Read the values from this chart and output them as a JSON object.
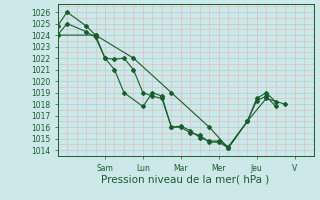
{
  "background_color": "#cde8e8",
  "grid_major_color": "#aacfcf",
  "grid_minor_color": "#e0b8b8",
  "line_color": "#1a5c2a",
  "ylim": [
    1013.5,
    1026.7
  ],
  "yticks": [
    1014,
    1015,
    1016,
    1017,
    1018,
    1019,
    1020,
    1021,
    1022,
    1023,
    1024,
    1025,
    1026
  ],
  "xlabel": "Pression niveau de la mer( hPa )",
  "xlabel_fontsize": 7.5,
  "day_labels": [
    "Sam",
    "Lun",
    "Mar",
    "Mer",
    "Jeu",
    "V"
  ],
  "day_positions": [
    2.5,
    4.5,
    6.5,
    8.5,
    10.5,
    12.5
  ],
  "xlim": [
    0,
    13.5
  ],
  "series": [
    {
      "x": [
        0.0,
        0.5,
        1.5,
        2.0,
        2.5,
        3.0,
        3.5,
        4.5,
        5.0,
        5.5,
        6.0,
        6.5,
        7.0,
        7.5,
        8.0,
        8.5,
        9.0,
        10.0,
        10.5,
        11.0,
        11.5
      ],
      "y": [
        1024.8,
        1026.0,
        1024.8,
        1024.0,
        1022.0,
        1021.0,
        1019.0,
        1017.8,
        1019.0,
        1018.7,
        1016.0,
        1016.0,
        1015.5,
        1015.3,
        1014.7,
        1014.7,
        1014.2,
        1016.5,
        1018.3,
        1018.7,
        1017.8
      ]
    },
    {
      "x": [
        0.0,
        0.5,
        1.5,
        2.0,
        2.5,
        3.0,
        3.5,
        4.0,
        4.5,
        5.0,
        5.5,
        6.0,
        6.5,
        7.0,
        7.5,
        8.0,
        8.5,
        9.0,
        10.0,
        10.5,
        11.0,
        11.5
      ],
      "y": [
        1024.0,
        1025.0,
        1024.3,
        1023.8,
        1022.0,
        1021.9,
        1022.0,
        1021.0,
        1019.0,
        1018.7,
        1018.5,
        1016.0,
        1016.1,
        1015.7,
        1015.1,
        1014.8,
        1014.8,
        1014.3,
        1016.5,
        1018.5,
        1019.0,
        1018.2
      ]
    },
    {
      "x": [
        0.0,
        2.0,
        4.0,
        6.0,
        8.0,
        9.0,
        10.0,
        11.0,
        12.0
      ],
      "y": [
        1024.0,
        1024.0,
        1022.0,
        1019.0,
        1016.0,
        1014.2,
        1016.5,
        1018.5,
        1018.0
      ]
    }
  ],
  "marker": "D",
  "marker_size": 2,
  "linewidth": 0.8,
  "tick_fontsize": 5.5,
  "label_color": "#1a5c2a",
  "spine_color": "#1a5c2a"
}
